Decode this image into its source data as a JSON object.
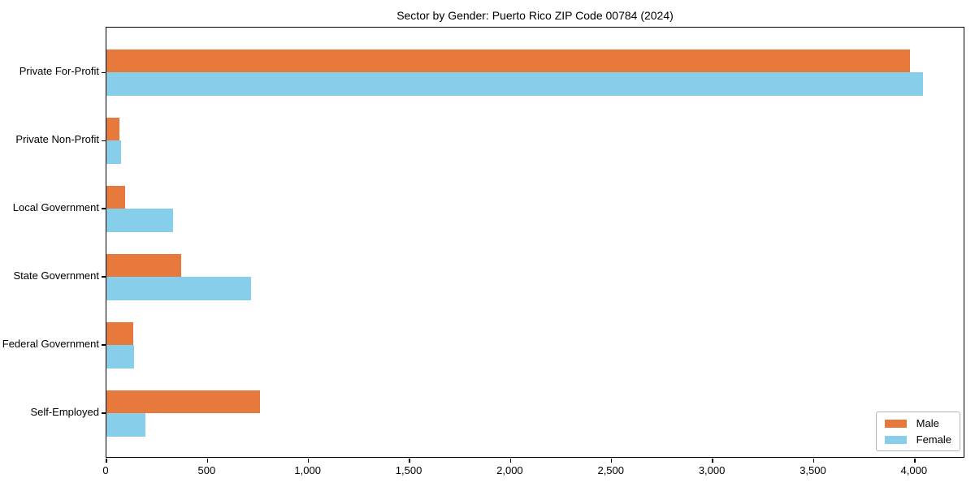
{
  "chart_data": {
    "type": "bar",
    "orientation": "horizontal",
    "title": "Sector by Gender: Puerto Rico ZIP Code 00784 (2024)",
    "categories": [
      "Private For-Profit",
      "Private Non-Profit",
      "Local Government",
      "State Government",
      "Federal Government",
      "Self-Employed"
    ],
    "series": [
      {
        "name": "Male",
        "color": "#e8793c",
        "values": [
          3975,
          64,
          91,
          370,
          133,
          760
        ]
      },
      {
        "name": "Female",
        "color": "#87ceeb",
        "values": [
          4041,
          71,
          328,
          715,
          135,
          193
        ]
      }
    ],
    "xlabel": "",
    "ylabel": "",
    "xlim": [
      0,
      4250
    ],
    "xticks": [
      0,
      500,
      1000,
      1500,
      2000,
      2500,
      3000,
      3500,
      4000
    ],
    "xtick_labels": [
      "0",
      "500",
      "1,000",
      "1,500",
      "2,000",
      "2,500",
      "3,000",
      "3,500",
      "4,000"
    ],
    "legend_position": "lower right",
    "grid": false,
    "background": "#ffffff",
    "spine_color": "#000000"
  }
}
